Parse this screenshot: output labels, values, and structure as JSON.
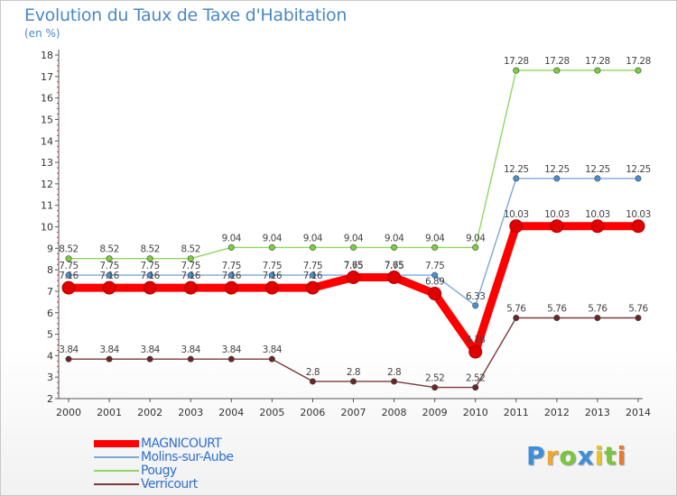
{
  "chart_data": {
    "type": "line",
    "title": "Evolution du Taux de Taxe d'Habitation",
    "unit_label": "(en %)",
    "x": [
      "2000",
      "2001",
      "2002",
      "2003",
      "2004",
      "2005",
      "2006",
      "2007",
      "2008",
      "2009",
      "2010",
      "2011",
      "2012",
      "2013",
      "2014"
    ],
    "ylim": [
      2,
      18
    ],
    "yticks": [
      "2",
      "3",
      "4",
      "5",
      "6",
      "7",
      "8",
      "9",
      "10",
      "11",
      "12",
      "13",
      "14",
      "15",
      "16",
      "17",
      "18"
    ],
    "grid": false,
    "legend_position": "bottom-left",
    "series": [
      {
        "name": "MAGNICOURT",
        "color": "#ff0000",
        "emphasis": true,
        "values": [
          7.16,
          7.16,
          7.16,
          7.16,
          7.16,
          7.16,
          7.16,
          7.65,
          7.65,
          6.89,
          4.18,
          10.03,
          10.03,
          10.03,
          10.03
        ],
        "labels": [
          "7.16",
          "7.16",
          "7.16",
          "7.16",
          "7.16",
          "7.16",
          "7.16",
          "7.65",
          "7.65",
          "6.89",
          "4.18",
          "10.03",
          "10.03",
          "10.03",
          "10.03"
        ]
      },
      {
        "name": "Molins-sur-Aube",
        "color": "#7ba9d8",
        "dot_color": "#4b8fd0",
        "values": [
          7.75,
          7.75,
          7.75,
          7.75,
          7.75,
          7.75,
          7.75,
          7.75,
          7.75,
          7.75,
          6.33,
          12.25,
          12.25,
          12.25,
          12.25
        ],
        "labels": [
          "7.75",
          "7.75",
          "7.75",
          "7.75",
          "7.75",
          "7.75",
          "7.75",
          "7.75",
          "7.75",
          "7.75",
          "6.33",
          "12.25",
          "12.25",
          "12.25",
          "12.25"
        ]
      },
      {
        "name": "Pougy",
        "color": "#8fd860",
        "dot_color": "#7cd03e",
        "values": [
          8.52,
          8.52,
          8.52,
          8.52,
          9.04,
          9.04,
          9.04,
          9.04,
          9.04,
          9.04,
          9.04,
          17.28,
          17.28,
          17.28,
          17.28
        ],
        "labels": [
          "8.52",
          "8.52",
          "8.52",
          "8.52",
          "9.04",
          "9.04",
          "9.04",
          "9.04",
          "9.04",
          "9.04",
          "9.04",
          "17.28",
          "17.28",
          "17.28",
          "17.28"
        ]
      },
      {
        "name": "Verricourt",
        "color": "#7a3a3a",
        "dot_color": "#6a2626",
        "values": [
          3.84,
          3.84,
          3.84,
          3.84,
          3.84,
          3.84,
          2.8,
          2.8,
          2.8,
          2.52,
          2.52,
          5.76,
          5.76,
          5.76,
          5.76
        ],
        "labels": [
          "3.84",
          "3.84",
          "3.84",
          "3.84",
          "3.84",
          "3.84",
          "2.8",
          "2.8",
          "2.8",
          "2.52",
          "2.52",
          "5.76",
          "5.76",
          "5.76",
          "5.76"
        ]
      }
    ]
  },
  "brand": {
    "letters": [
      "P",
      "r",
      "o",
      "x",
      "i",
      "t",
      "i"
    ],
    "colors": [
      "#3f8fd8",
      "#f0a830",
      "#7cc440",
      "#3f8fd8",
      "#e8c030",
      "#7cc440",
      "#e87a30"
    ]
  }
}
